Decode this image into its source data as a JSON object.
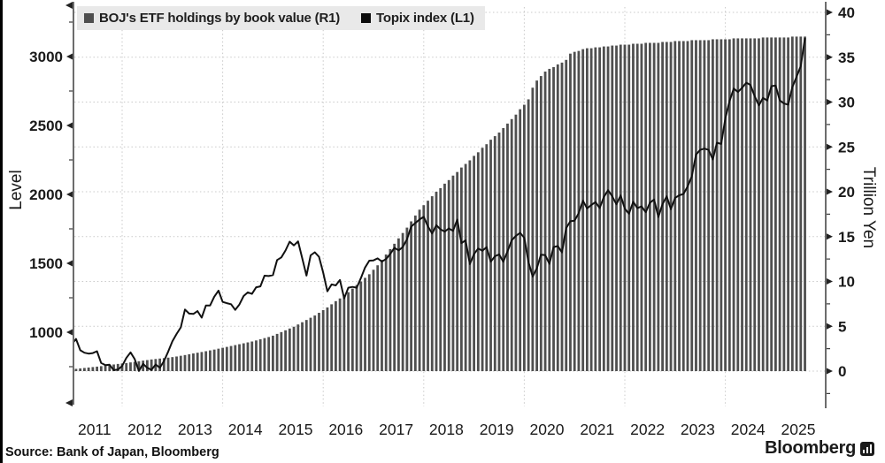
{
  "page": {
    "background": "#ffffff",
    "left_border_color": "#000000"
  },
  "legend": {
    "background": "#e9e9e9",
    "items": [
      {
        "label": "BOJ's ETF holdings by book value (R1)",
        "swatch_color": "#4f4f4f",
        "swatch_icon": "filled-square"
      },
      {
        "label": "Topix index (L1)",
        "swatch_color": "#0d0d0d",
        "swatch_icon": "filled-square"
      }
    ]
  },
  "axis_titles": {
    "left": "Level",
    "right": "Trillion Yen"
  },
  "footer": {
    "source_text": "Source: Bank of Japan, Bloomberg",
    "brand": "Bloomberg",
    "brand_icon": "bar-chart-icon"
  },
  "chart_data": {
    "type": "mixed",
    "title": "",
    "x": {
      "start": "2010-12",
      "frequency": "monthly",
      "end": "2025-08"
    },
    "x_ticks": [
      "2011",
      "2012",
      "2013",
      "2014",
      "2015",
      "2016",
      "2017",
      "2018",
      "2019",
      "2020",
      "2021",
      "2022",
      "2023",
      "2024",
      "2025"
    ],
    "left_axis": {
      "label": "Level",
      "ticks": [
        1000,
        1500,
        2000,
        2500,
        3000
      ]
    },
    "right_axis": {
      "label": "Trillion Yen",
      "ticks": [
        0,
        5,
        10,
        15,
        20,
        25,
        30,
        35,
        40
      ],
      "range": [
        0,
        40
      ]
    },
    "grid": "dotted",
    "legend_position": "top-left",
    "series": [
      {
        "name": "BOJ's ETF holdings by book value (R1)",
        "type": "bar",
        "axis": "R1",
        "unit": "trillion yen",
        "color": "#4f4f4f",
        "values": [
          0.15,
          0.2,
          0.25,
          0.3,
          0.35,
          0.4,
          0.45,
          0.5,
          0.55,
          0.62,
          0.68,
          0.74,
          0.8,
          0.85,
          0.9,
          0.97,
          1.03,
          1.1,
          1.17,
          1.23,
          1.3,
          1.35,
          1.4,
          1.45,
          1.5,
          1.56,
          1.63,
          1.71,
          1.79,
          1.88,
          1.97,
          2.05,
          2.13,
          2.22,
          2.31,
          2.4,
          2.5,
          2.6,
          2.7,
          2.8,
          2.9,
          3.0,
          3.1,
          3.2,
          3.3,
          3.42,
          3.55,
          3.68,
          3.8,
          3.95,
          4.15,
          4.35,
          4.55,
          4.75,
          4.95,
          5.2,
          5.45,
          5.7,
          5.95,
          6.2,
          6.5,
          6.8,
          7.1,
          7.45,
          7.8,
          8.1,
          8.45,
          8.8,
          9.2,
          9.6,
          10.0,
          10.4,
          10.8,
          11.3,
          11.8,
          12.4,
          13.0,
          13.6,
          14.2,
          14.8,
          15.4,
          16.0,
          16.7,
          17.35,
          18.0,
          18.5,
          19.0,
          19.5,
          20.0,
          20.4,
          20.9,
          21.3,
          21.8,
          22.2,
          22.7,
          23.1,
          23.5,
          24.0,
          24.4,
          24.9,
          25.3,
          25.8,
          26.2,
          26.6,
          27.1,
          27.6,
          28.1,
          28.6,
          29.2,
          29.7,
          30.3,
          31.6,
          32.4,
          32.9,
          33.4,
          33.7,
          33.9,
          34.2,
          34.4,
          34.7,
          35.4,
          35.6,
          35.7,
          35.9,
          36.0,
          36.0,
          36.1,
          36.1,
          36.2,
          36.2,
          36.3,
          36.3,
          36.4,
          36.4,
          36.4,
          36.5,
          36.5,
          36.5,
          36.6,
          36.6,
          36.6,
          36.6,
          36.7,
          36.7,
          36.7,
          36.8,
          36.8,
          36.8,
          36.8,
          36.9,
          36.9,
          36.9,
          36.9,
          36.9,
          37.0,
          37.0,
          37.0,
          37.0,
          37.0,
          37.1,
          37.1,
          37.1,
          37.1,
          37.1,
          37.1,
          37.1,
          37.2,
          37.2,
          37.2,
          37.2,
          37.2,
          37.2,
          37.2,
          37.3,
          37.3,
          37.3,
          37.3
        ]
      },
      {
        "name": "Topix index (L1)",
        "type": "line",
        "axis": "L1",
        "unit": "index level",
        "color": "#111111",
        "values": [
          898,
          913,
          951,
          869,
          851,
          845,
          849,
          862,
          777,
          761,
          764,
          725,
          729,
          755,
          813,
          854,
          805,
          719,
          770,
          742,
          727,
          766,
          742,
          791,
          860,
          934,
          987,
          1035,
          1165,
          1135,
          1133,
          1153,
          1106,
          1194,
          1194,
          1258,
          1302,
          1220,
          1211,
          1203,
          1162,
          1201,
          1263,
          1289,
          1278,
          1326,
          1333,
          1410,
          1408,
          1415,
          1524,
          1543,
          1593,
          1657,
          1630,
          1659,
          1537,
          1411,
          1558,
          1580,
          1547,
          1432,
          1297,
          1347,
          1340,
          1379,
          1246,
          1323,
          1329,
          1323,
          1393,
          1469,
          1519,
          1521,
          1536,
          1513,
          1531,
          1568,
          1612,
          1594,
          1617,
          1675,
          1766,
          1792,
          1818,
          1837,
          1768,
          1716,
          1777,
          1747,
          1730,
          1753,
          1735,
          1817,
          1646,
          1667,
          1494,
          1567,
          1607,
          1591,
          1617,
          1512,
          1551,
          1565,
          1511,
          1587,
          1667,
          1699,
          1721,
          1685,
          1510,
          1403,
          1464,
          1563,
          1559,
          1496,
          1618,
          1625,
          1579,
          1755,
          1805,
          1809,
          1864,
          1954,
          1898,
          1923,
          1944,
          1901,
          1981,
          2031,
          1986,
          1928,
          1992,
          1896,
          1860,
          1946,
          1900,
          1913,
          1871,
          1940,
          1963,
          1836,
          1929,
          1986,
          1892,
          1975,
          1993,
          2003,
          2058,
          2131,
          2289,
          2323,
          2332,
          2323,
          2254,
          2375,
          2366,
          2551,
          2676,
          2768,
          2743,
          2773,
          2810,
          2794,
          2713,
          2646,
          2700,
          2681,
          2785,
          2789,
          2682,
          2659,
          2651,
          2778,
          2853,
          2930,
          3130
        ]
      }
    ]
  }
}
